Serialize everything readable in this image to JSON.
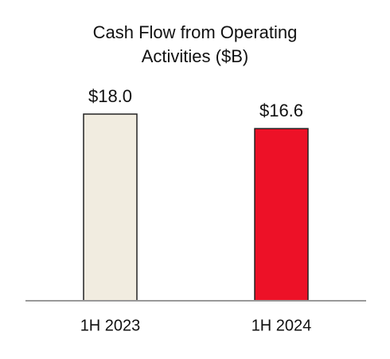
{
  "chart_data": {
    "type": "bar",
    "title": "Cash Flow from Operating Activities ($B)",
    "categories": [
      "1H 2023",
      "1H 2024"
    ],
    "values": [
      18.0,
      16.6
    ],
    "value_labels": [
      "$18.0",
      "$16.6"
    ],
    "colors": [
      "#f1ece0",
      "#ed1127"
    ]
  }
}
